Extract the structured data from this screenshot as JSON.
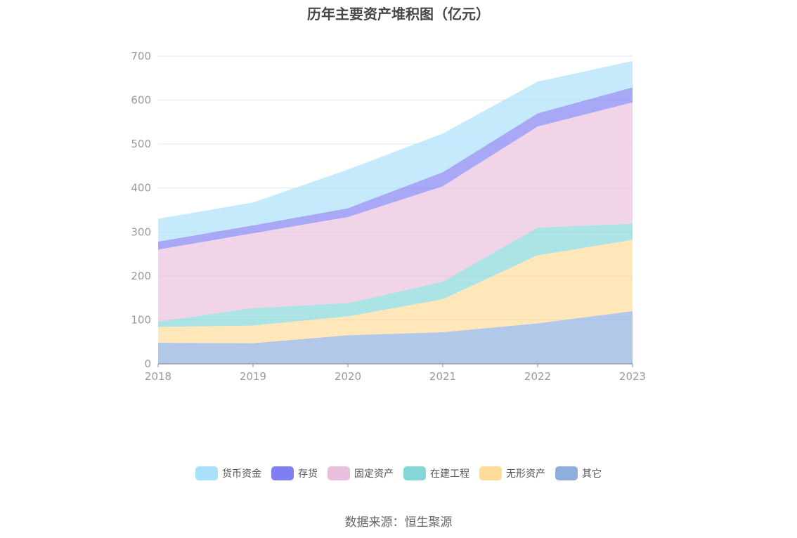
{
  "chart_data": {
    "type": "area",
    "stacked": true,
    "title": "历年主要资产堆积图（亿元）",
    "categories": [
      "2018",
      "2019",
      "2020",
      "2021",
      "2022",
      "2023"
    ],
    "ylim": [
      0,
      700
    ],
    "yticks": [
      0,
      100,
      200,
      300,
      400,
      500,
      600,
      700
    ],
    "grid": true,
    "legend_position": "bottom",
    "series": [
      {
        "name": "其它",
        "color": "#8eaede",
        "values": [
          48,
          47,
          65,
          72,
          92,
          120
        ]
      },
      {
        "name": "无形资产",
        "color": "#ffdb9a",
        "values": [
          36,
          40,
          43,
          75,
          155,
          162
        ]
      },
      {
        "name": "在建工程",
        "color": "#85d6d7",
        "values": [
          12,
          40,
          30,
          40,
          63,
          37
        ]
      },
      {
        "name": "固定资产",
        "color": "#eabfdd",
        "values": [
          164,
          170,
          196,
          217,
          230,
          276
        ]
      },
      {
        "name": "存货",
        "color": "#7f7ff2",
        "values": [
          18,
          18,
          20,
          32,
          30,
          34
        ]
      },
      {
        "name": "货币资金",
        "color": "#a9e0fa",
        "values": [
          52,
          52,
          88,
          88,
          72,
          60
        ]
      }
    ],
    "legend_order": [
      "货币资金",
      "存货",
      "固定资产",
      "在建工程",
      "无形资产",
      "其它"
    ]
  },
  "source": "数据来源：恒生聚源"
}
